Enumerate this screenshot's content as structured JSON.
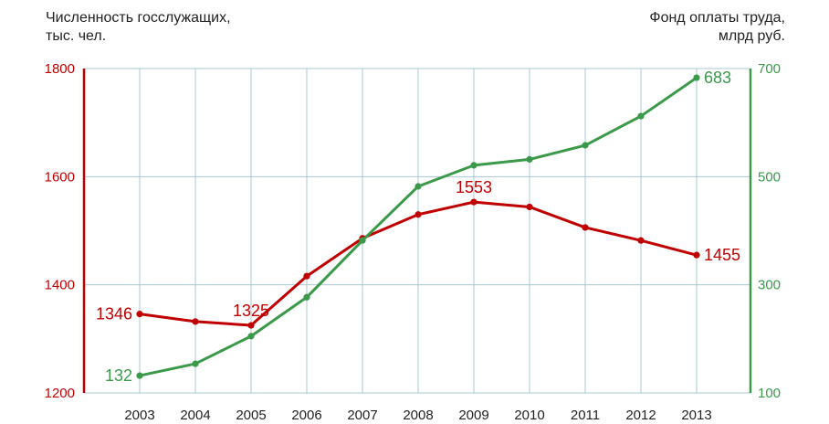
{
  "chart_data": {
    "type": "line",
    "categories": [
      "2003",
      "2004",
      "2005",
      "2006",
      "2007",
      "2008",
      "2009",
      "2010",
      "2011",
      "2012",
      "2013"
    ],
    "left_axis": {
      "label": "Численность госслужащих,\nтыс. чел.",
      "ticks": [
        "1800",
        "1600",
        "1400",
        "1200"
      ],
      "ylim": [
        1200,
        1800
      ],
      "color": "#c00000"
    },
    "right_axis": {
      "label": "Фонд оплаты труда,\nмлрд руб.",
      "ticks": [
        "700",
        "500",
        "300",
        "100"
      ],
      "ylim": [
        100,
        700
      ],
      "color": "#3a9a4a"
    },
    "series": [
      {
        "axis": "left",
        "color": "#c00000",
        "values": [
          1346,
          1332,
          1325,
          1416,
          1486,
          1530,
          1553,
          1544,
          1506,
          1482,
          1455
        ],
        "labels": [
          {
            "index": 0,
            "text": "1346",
            "pos": "left"
          },
          {
            "index": 2,
            "text": "1325",
            "pos": "above"
          },
          {
            "index": 6,
            "text": "1553",
            "pos": "above"
          },
          {
            "index": 10,
            "text": "1455",
            "pos": "right"
          }
        ]
      },
      {
        "axis": "right",
        "color": "#3a9a4a",
        "values": [
          132,
          154,
          205,
          277,
          382,
          482,
          521,
          532,
          558,
          612,
          683
        ],
        "labels": [
          {
            "index": 0,
            "text": "132",
            "pos": "left"
          },
          {
            "index": 10,
            "text": "683",
            "pos": "right"
          }
        ]
      }
    ],
    "grid": true
  }
}
